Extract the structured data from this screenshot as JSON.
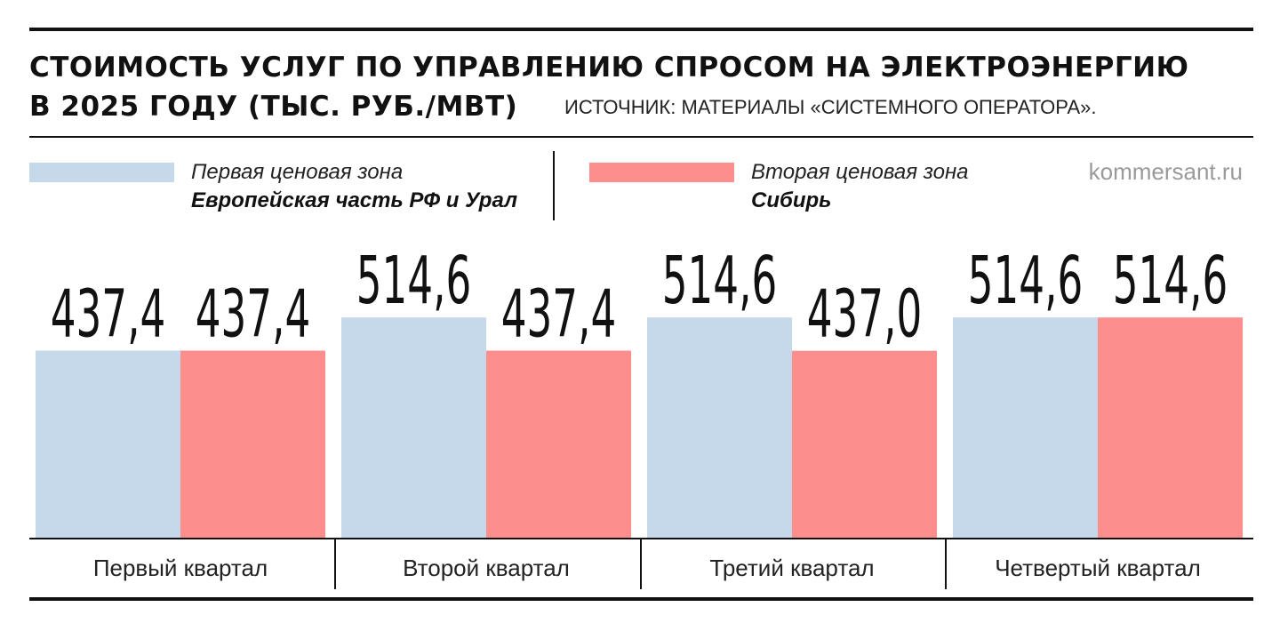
{
  "title_lines": [
    "СТОИМОСТЬ УСЛУГ ПО УПРАВЛЕНИЮ СПРОСОМ НА ЭЛЕКТРОЭНЕРГИЮ",
    "В 2025 ГОДУ (ТЫС. РУБ./МВТ)"
  ],
  "source": "ИСТОЧНИК: МАТЕРИАЛЫ «СИСТЕМНОГО ОПЕРАТОРА».",
  "site": "kommersant.ru",
  "legend": [
    {
      "label": "Первая ценовая зона",
      "sub": "Европейская часть РФ и Урал",
      "color": "#c5d9ea"
    },
    {
      "label": "Вторая ценовая зона",
      "sub": "Сибирь",
      "color": "#fd8e8e"
    }
  ],
  "chart_data": {
    "type": "bar",
    "title": "СТОИМОСТЬ УСЛУГ ПО УПРАВЛЕНИЮ СПРОСОМ НА ЭЛЕКТРОЭНЕРГИЮ В 2025 ГОДУ (ТЫС. РУБ./МВТ)",
    "categories": [
      "Первый квартал",
      "Второй квартал",
      "Третий квартал",
      "Четвертый квартал"
    ],
    "series": [
      {
        "name": "Первая ценовая зона",
        "values": [
          437.4,
          514.6,
          514.6,
          514.6
        ],
        "labels": [
          "437,4",
          "514,6",
          "514,6",
          "514,6"
        ],
        "color": "#c5d9ea"
      },
      {
        "name": "Вторая ценовая зона",
        "values": [
          437.4,
          437.4,
          437.0,
          514.6
        ],
        "labels": [
          "437,4",
          "437,4",
          "437,0",
          "514,6"
        ],
        "color": "#fd8e8e"
      }
    ],
    "xlabel": "",
    "ylabel": "",
    "ylim": [
      0,
      600
    ],
    "grid": false,
    "legend_position": "top"
  }
}
